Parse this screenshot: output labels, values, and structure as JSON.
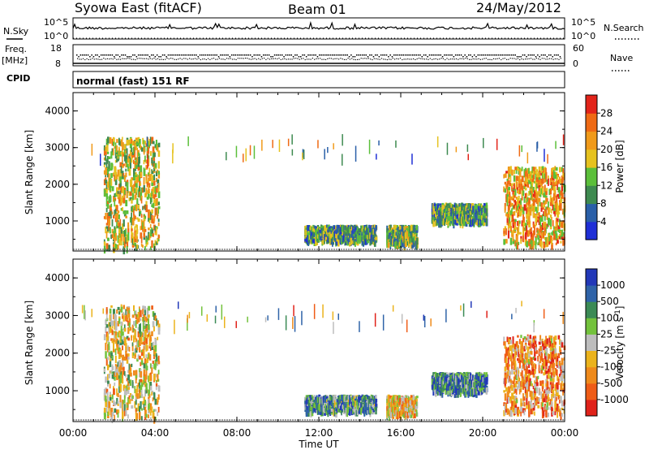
{
  "header": {
    "title": "Syowa East (fitACF)",
    "beam": "Beam 01",
    "date": "24/May/2012"
  },
  "status_panels": {
    "nsky_label": "N.Sky",
    "nsky_top": "10^5",
    "nsky_bottom": "10^0",
    "nsearch_label": "N.Search",
    "freq_label": "Freq.",
    "freq_unit": "[MHz]",
    "freq_top": "18",
    "freq_bottom": "8",
    "nave_label": "Nave",
    "nave_top": "60",
    "nave_bottom": "0",
    "cpid_label": "CPID",
    "cpid_value": "normal (fast) 151 RF"
  },
  "x_ticks": [
    "00:00",
    "04:00",
    "08:00",
    "12:00",
    "16:00",
    "20:00",
    "00:00"
  ],
  "x_label": "Time UT",
  "colors": {
    "power_scale": [
      "#1f2fd6",
      "#2a5fa8",
      "#3e8a50",
      "#5bbf3a",
      "#e6c21f",
      "#f09a1a",
      "#ef6a14",
      "#e2241a"
    ],
    "velocity_scale": [
      "#2238b8",
      "#2f63a8",
      "#3b8a55",
      "#73c23c",
      "#bdbdbd",
      "#ebb31c",
      "#ef8a1b",
      "#ef5c16",
      "#e0221a"
    ]
  },
  "chart_data": [
    {
      "type": "heatmap",
      "panel": "power",
      "ylabel": "Slant Range [km]",
      "y_ticks": [
        "1000",
        "2000",
        "3000",
        "4000"
      ],
      "ylim": [
        180,
        4500
      ],
      "xlim": [
        0,
        24
      ],
      "colorbar_label": "Power [dB]",
      "colorbar_ticks": [
        "4",
        "8",
        "12",
        "16",
        "20",
        "24",
        "28"
      ],
      "echo_regions": [
        {
          "t": [
            1.5,
            4.2
          ],
          "r": [
            300,
            3300
          ],
          "level": 0.55
        },
        {
          "t": [
            11.3,
            14.8
          ],
          "r": [
            500,
            900
          ],
          "level": 0.35
        },
        {
          "t": [
            15.3,
            16.8
          ],
          "r": [
            400,
            900
          ],
          "level": 0.4
        },
        {
          "t": [
            17.5,
            20.2
          ],
          "r": [
            1000,
            1500
          ],
          "level": 0.35
        },
        {
          "t": [
            21.0,
            24.0
          ],
          "r": [
            400,
            2500
          ],
          "level": 0.65
        }
      ]
    },
    {
      "type": "heatmap",
      "panel": "velocity",
      "ylabel": "Slant Range [km]",
      "y_ticks": [
        "1000",
        "2000",
        "3000",
        "4000"
      ],
      "ylim": [
        180,
        4500
      ],
      "xlim": [
        0,
        24
      ],
      "colorbar_label": "Velocity [m s^-1]",
      "colorbar_ticks": [
        "1000",
        "500",
        "100",
        "25",
        "-25",
        "-100",
        "-500",
        "-1000"
      ],
      "echo_regions": [
        {
          "t": [
            1.5,
            4.2
          ],
          "r": [
            300,
            3300
          ],
          "level": 0.45
        },
        {
          "t": [
            11.3,
            14.8
          ],
          "r": [
            500,
            900
          ],
          "level": 0.7
        },
        {
          "t": [
            15.3,
            16.8
          ],
          "r": [
            400,
            900
          ],
          "level": 0.4
        },
        {
          "t": [
            17.5,
            20.2
          ],
          "r": [
            1000,
            1500
          ],
          "level": 0.75
        },
        {
          "t": [
            21.0,
            24.0
          ],
          "r": [
            400,
            2500
          ],
          "level": 0.3
        }
      ]
    }
  ]
}
